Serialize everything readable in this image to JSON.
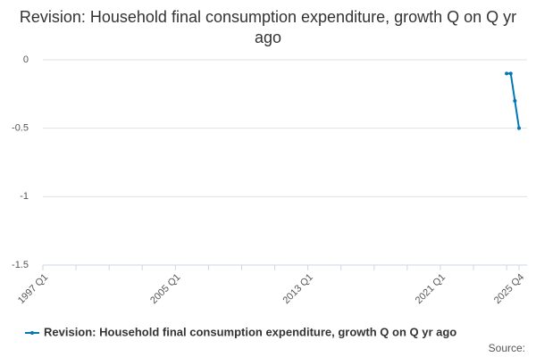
{
  "chart_data": {
    "type": "line",
    "title": "Revision: Household final consumption expenditure, growth Q on Q yr ago",
    "categories": [
      "1997 Q1",
      null,
      null,
      null,
      null,
      null,
      null,
      null,
      null,
      null,
      null,
      null,
      null,
      null,
      null,
      null,
      null,
      null,
      null,
      null,
      null,
      null,
      null,
      null,
      null,
      null,
      null,
      null,
      null,
      null,
      null,
      null,
      "2005 Q1",
      null,
      null,
      null,
      null,
      null,
      null,
      null,
      null,
      null,
      null,
      null,
      null,
      null,
      null,
      null,
      null,
      null,
      null,
      null,
      null,
      null,
      null,
      null,
      null,
      null,
      null,
      null,
      null,
      null,
      null,
      null,
      "2013 Q1",
      null,
      null,
      null,
      null,
      null,
      null,
      null,
      null,
      null,
      null,
      null,
      null,
      null,
      null,
      null,
      null,
      null,
      null,
      null,
      null,
      null,
      null,
      null,
      null,
      null,
      null,
      null,
      null,
      null,
      null,
      null,
      "2021 Q1",
      null,
      null,
      null,
      null,
      null,
      null,
      null,
      null,
      null,
      null,
      null,
      null,
      null,
      null,
      null,
      null,
      null,
      null,
      "2025 Q4"
    ],
    "series": [
      {
        "name": "Revision: Household final consumption expenditure, growth Q on Q yr ago",
        "color": "#0077b6",
        "values": [
          null,
          null,
          null,
          null,
          null,
          null,
          null,
          null,
          null,
          null,
          null,
          null,
          null,
          null,
          null,
          null,
          null,
          null,
          null,
          null,
          null,
          null,
          null,
          null,
          null,
          null,
          null,
          null,
          null,
          null,
          null,
          null,
          null,
          null,
          null,
          null,
          null,
          null,
          null,
          null,
          null,
          null,
          null,
          null,
          null,
          null,
          null,
          null,
          null,
          null,
          null,
          null,
          null,
          null,
          null,
          null,
          null,
          null,
          null,
          null,
          null,
          null,
          null,
          null,
          null,
          null,
          null,
          null,
          null,
          null,
          null,
          null,
          null,
          null,
          null,
          null,
          null,
          null,
          null,
          null,
          null,
          null,
          null,
          null,
          null,
          null,
          null,
          null,
          null,
          null,
          null,
          null,
          null,
          null,
          null,
          null,
          null,
          null,
          null,
          null,
          null,
          null,
          null,
          null,
          null,
          null,
          null,
          null,
          null,
          null,
          null,
          null,
          -0.1,
          -0.1,
          -0.3,
          -0.5
        ]
      }
    ],
    "ylim": [
      -1.5,
      0
    ],
    "yticks": [
      -1.5,
      -1,
      -0.5,
      0
    ],
    "grid": true,
    "source": "Source:"
  }
}
